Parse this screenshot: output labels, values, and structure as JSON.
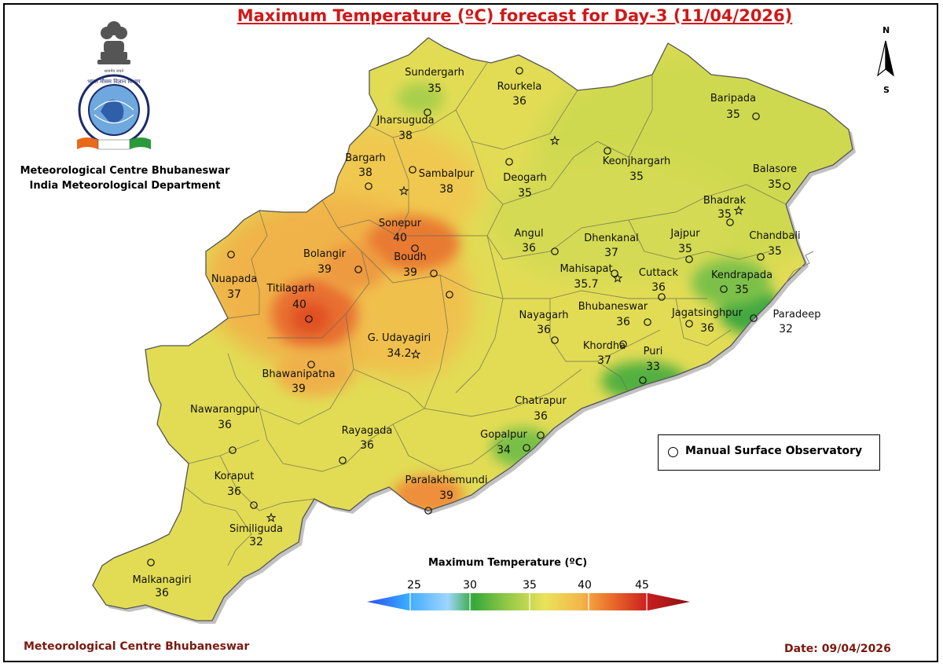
{
  "title": "Maximum Temperature (ºC) forecast for Day-3 (11/04/2026)",
  "organization": {
    "line1": "Meteorological Centre Bhubaneswar",
    "line2": "India Meteorological Department",
    "emblem_text_top": "भारत मौसम विज्ञान विभाग",
    "emblem_text_side": "INDIA METEOROLOGICAL DEPARTMENT",
    "emblem_ribbon": "आदित्यात जायते वृष्टि"
  },
  "footer": {
    "left": "Meteorological Centre Bhubaneswar",
    "right": "Date: 09/04/2026"
  },
  "north_arrow": {
    "n": "N",
    "s": "S"
  },
  "legend": {
    "label": "Manual Surface Observatory"
  },
  "scale": {
    "title": "Maximum Temperature (ºC)",
    "ticks": [
      "25",
      "30",
      "35",
      "40",
      "45"
    ],
    "colors": [
      "#2a4cff",
      "#37a8ff",
      "#9fd6ff",
      "#35a83a",
      "#8fc846",
      "#e9e35a",
      "#f2b84a",
      "#ea6a2a",
      "#c91e1e",
      "#8a1010"
    ]
  },
  "colors": {
    "title": "#d01818",
    "footer": "#7a1a10",
    "base_fill": "#e4de58"
  },
  "stations": [
    {
      "name": "Sundergarh",
      "value": "35"
    },
    {
      "name": "Rourkela",
      "value": "36"
    },
    {
      "name": "Jharsuguda",
      "value": "38"
    },
    {
      "name": "Bargarh",
      "value": "38"
    },
    {
      "name": "Sambalpur",
      "value": "38"
    },
    {
      "name": "Deogarh",
      "value": "35"
    },
    {
      "name": "Keonjhargarh",
      "value": "35"
    },
    {
      "name": "Baripada",
      "value": "35"
    },
    {
      "name": "Balasore",
      "value": "35"
    },
    {
      "name": "Bhadrak",
      "value": "35"
    },
    {
      "name": "Chandbali",
      "value": "35"
    },
    {
      "name": "Sonepur",
      "value": "40"
    },
    {
      "name": "Bolangir",
      "value": "39"
    },
    {
      "name": "Boudh",
      "value": "39"
    },
    {
      "name": "Nuapada",
      "value": "37"
    },
    {
      "name": "Titilagarh",
      "value": "40"
    },
    {
      "name": "Angul",
      "value": "36"
    },
    {
      "name": "Dhenkanal",
      "value": "37"
    },
    {
      "name": "Jajpur",
      "value": "35"
    },
    {
      "name": "Mahisapat",
      "value": "35.7"
    },
    {
      "name": "Cuttack",
      "value": "36"
    },
    {
      "name": "Kendrapada",
      "value": "35"
    },
    {
      "name": "Nayagarh",
      "value": "36"
    },
    {
      "name": "Bhubaneswar",
      "value": "36"
    },
    {
      "name": "Jagatsinghpur",
      "value": "36"
    },
    {
      "name": "Paradeep",
      "value": "32"
    },
    {
      "name": "G. Udayagiri",
      "value": "34.2"
    },
    {
      "name": "Khordha",
      "value": "37"
    },
    {
      "name": "Puri",
      "value": "33"
    },
    {
      "name": "Bhawanipatna",
      "value": "39"
    },
    {
      "name": "Nawarangpur",
      "value": "36"
    },
    {
      "name": "Chatrapur",
      "value": "36"
    },
    {
      "name": "Rayagada",
      "value": "36"
    },
    {
      "name": "Gopalpur",
      "value": "34"
    },
    {
      "name": "Koraput",
      "value": "36"
    },
    {
      "name": "Paralakhemundi",
      "value": "39"
    },
    {
      "name": "Similiguda",
      "value": "32"
    },
    {
      "name": "Malkanagiri",
      "value": "36"
    }
  ]
}
